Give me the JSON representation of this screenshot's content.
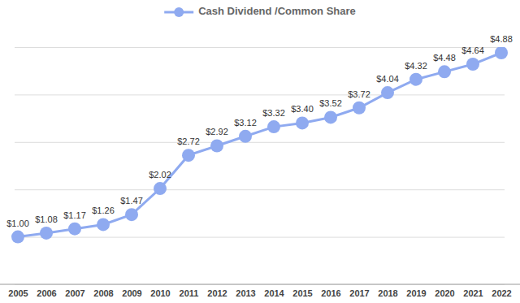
{
  "chart_data": {
    "type": "line",
    "categories": [
      "2005",
      "2006",
      "2007",
      "2008",
      "2009",
      "2010",
      "2011",
      "2012",
      "2013",
      "2014",
      "2015",
      "2016",
      "2017",
      "2018",
      "2019",
      "2020",
      "2021",
      "2022"
    ],
    "series": [
      {
        "name": "Cash Dividend /Common Share",
        "color": "#8faaf0",
        "marker": "circle",
        "line_style": "solid",
        "values": [
          1.0,
          1.08,
          1.17,
          1.26,
          1.47,
          2.02,
          2.72,
          2.92,
          3.12,
          3.32,
          3.4,
          3.52,
          3.72,
          4.04,
          4.32,
          4.48,
          4.64,
          4.88
        ],
        "value_labels": [
          "$1.00",
          "$1.08",
          "$1.17",
          "$1.26",
          "$1.47",
          "$2.02",
          "$2.72",
          "$2.92",
          "$3.12",
          "$3.32",
          "$3.40",
          "$3.52",
          "$3.72",
          "$4.04",
          "$4.32",
          "$4.48",
          "$4.64",
          "$4.88"
        ]
      }
    ],
    "ylim": [
      0,
      5
    ],
    "yticks": [
      0,
      1,
      2,
      3,
      4,
      5
    ],
    "grid": true,
    "legend": "top",
    "data_labels": true,
    "tick_labels": "x"
  }
}
